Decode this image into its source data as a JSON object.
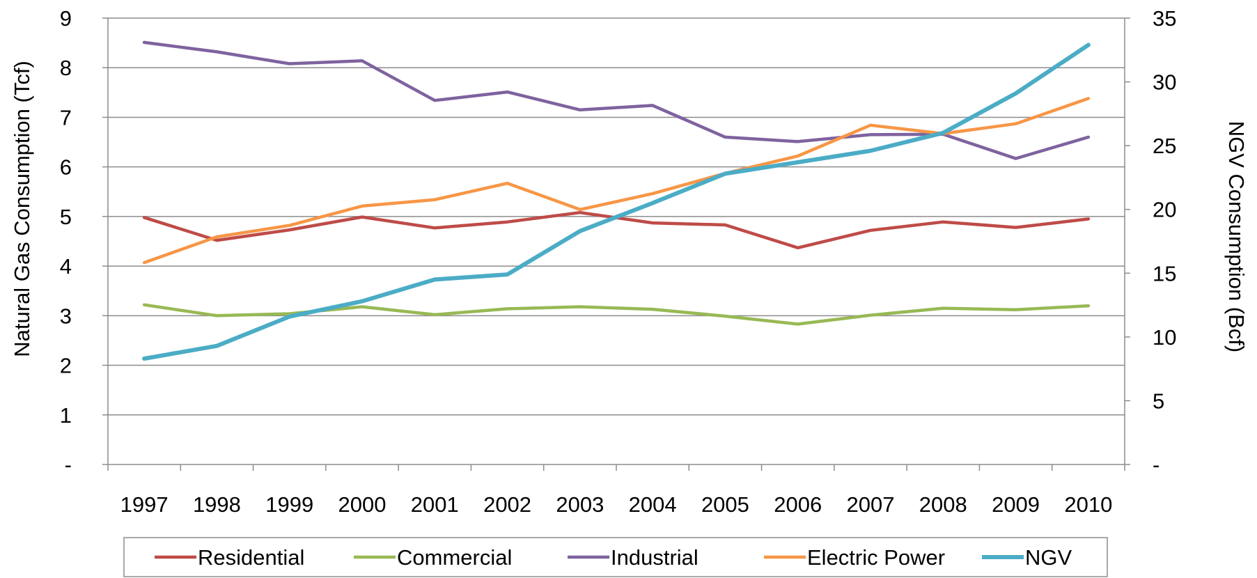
{
  "chart_data": {
    "type": "line",
    "title": "",
    "categories": [
      "1997",
      "1998",
      "1999",
      "2000",
      "2001",
      "2002",
      "2003",
      "2004",
      "2005",
      "2006",
      "2007",
      "2008",
      "2009",
      "2010"
    ],
    "y_left": {
      "label": "Natural Gas Consumption (Tcf)",
      "range": [
        0,
        9
      ],
      "ticks": [
        0,
        1,
        2,
        3,
        4,
        5,
        6,
        7,
        8,
        9
      ],
      "tick_labels": [
        "-",
        "1",
        "2",
        "3",
        "4",
        "5",
        "6",
        "7",
        "8",
        "9"
      ]
    },
    "y_right": {
      "label": "NGV Consumption (Bcf)",
      "range": [
        0,
        35
      ],
      "ticks": [
        0,
        5,
        10,
        15,
        20,
        25,
        30,
        35
      ],
      "tick_labels": [
        "-",
        "5",
        "10",
        "15",
        "20",
        "25",
        "30",
        "35"
      ]
    },
    "grid": true,
    "legend_position": "bottom",
    "series": [
      {
        "name": "Residential",
        "axis": "left",
        "color": "#BE4B48",
        "values": [
          4.98,
          4.52,
          4.73,
          4.99,
          4.77,
          4.89,
          5.08,
          4.87,
          4.83,
          4.37,
          4.72,
          4.89,
          4.78,
          4.95
        ]
      },
      {
        "name": "Commercial",
        "axis": "left",
        "color": "#98B954",
        "values": [
          3.22,
          3.0,
          3.04,
          3.18,
          3.02,
          3.14,
          3.18,
          3.13,
          2.99,
          2.83,
          3.01,
          3.15,
          3.12,
          3.2
        ]
      },
      {
        "name": "Industrial",
        "axis": "left",
        "color": "#7E639F",
        "values": [
          8.51,
          8.32,
          8.08,
          8.14,
          7.34,
          7.51,
          7.15,
          7.24,
          6.6,
          6.51,
          6.65,
          6.66,
          6.17,
          6.6
        ]
      },
      {
        "name": "Electric Power",
        "axis": "left",
        "color": "#F79646",
        "values": [
          4.07,
          4.59,
          4.82,
          5.21,
          5.34,
          5.67,
          5.14,
          5.46,
          5.87,
          6.22,
          6.84,
          6.67,
          6.87,
          7.38
        ]
      },
      {
        "name": "NGV",
        "axis": "right",
        "color": "#4BACC6",
        "values": [
          8.3,
          9.3,
          11.6,
          12.8,
          14.5,
          14.9,
          18.3,
          20.5,
          22.8,
          23.7,
          24.6,
          26.0,
          29.1,
          32.9
        ]
      }
    ]
  }
}
